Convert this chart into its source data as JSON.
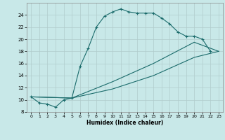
{
  "xlabel": "Humidex (Indice chaleur)",
  "background_color": "#c8e8e8",
  "grid_color": "#b0cccc",
  "line_color": "#1a6b6b",
  "line1_x": [
    0,
    1,
    2,
    3,
    4,
    5,
    6,
    7,
    8,
    9,
    10,
    11,
    12,
    13,
    14,
    15,
    16,
    17,
    18,
    19,
    20,
    21,
    22
  ],
  "line1_y": [
    10.5,
    9.5,
    9.3,
    8.8,
    10.0,
    10.3,
    15.5,
    18.5,
    22.0,
    23.8,
    24.5,
    25.0,
    24.5,
    24.3,
    24.3,
    24.3,
    23.5,
    22.5,
    21.2,
    20.5,
    20.5,
    20.0,
    18.0
  ],
  "line2_x": [
    5,
    23
  ],
  "line2_y": [
    10.3,
    18.0
  ],
  "line3_x": [
    5,
    23
  ],
  "line3_y": [
    10.3,
    18.0
  ],
  "line2b_x": [
    0,
    5,
    10,
    15,
    20,
    23
  ],
  "line2b_y": [
    10.5,
    10.3,
    11.8,
    14.0,
    17.0,
    18.0
  ],
  "line3b_x": [
    0,
    5,
    10,
    15,
    20,
    23
  ],
  "line3b_y": [
    10.5,
    10.3,
    13.0,
    16.0,
    19.5,
    18.0
  ],
  "xlim": [
    -0.5,
    23.5
  ],
  "ylim": [
    8,
    26
  ],
  "yticks": [
    8,
    10,
    12,
    14,
    16,
    18,
    20,
    22,
    24
  ],
  "xticks": [
    0,
    1,
    2,
    3,
    4,
    5,
    6,
    7,
    8,
    9,
    10,
    11,
    12,
    13,
    14,
    15,
    16,
    17,
    18,
    19,
    20,
    21,
    22,
    23
  ]
}
